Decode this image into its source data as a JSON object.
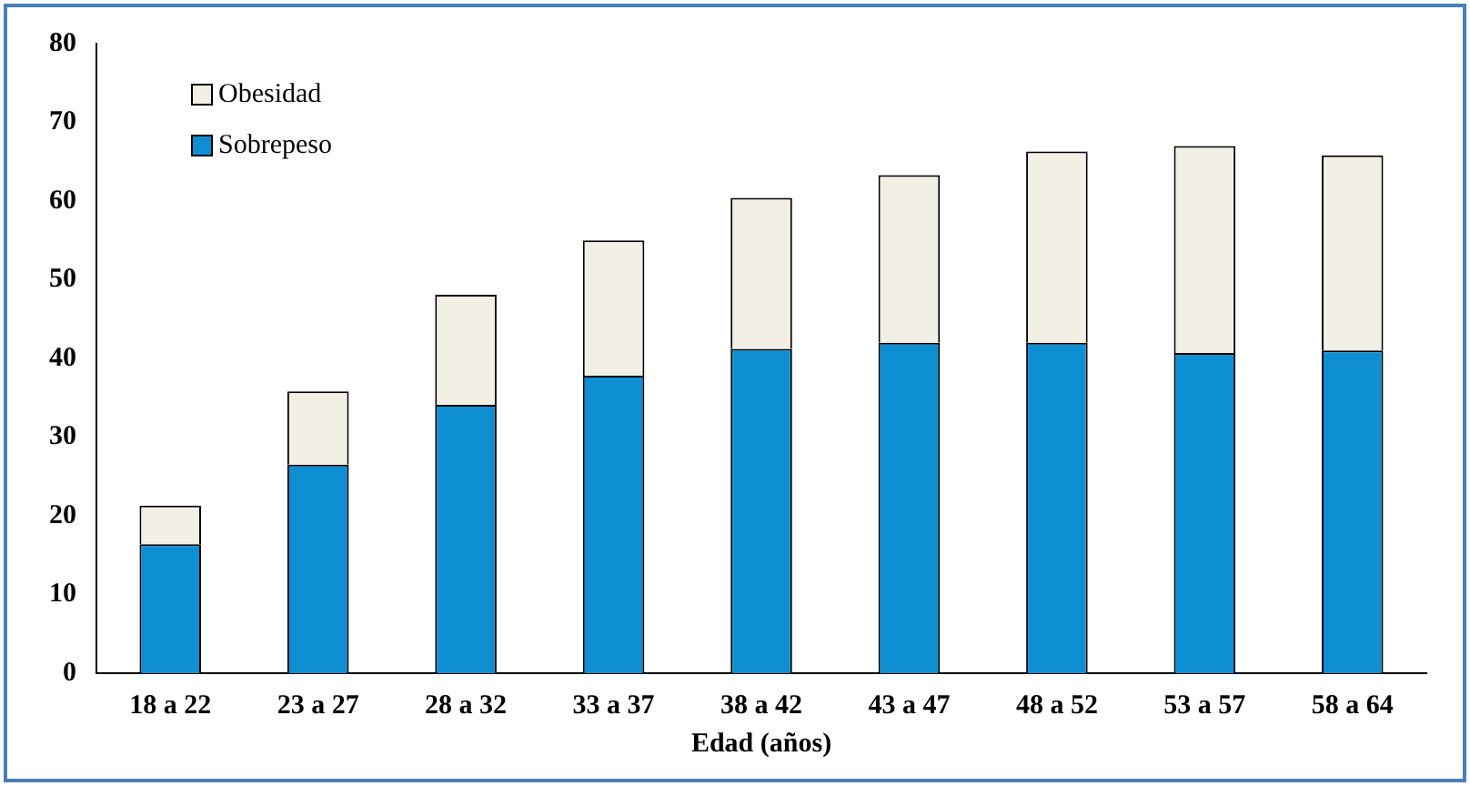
{
  "chart_data": {
    "type": "bar",
    "stacked": true,
    "xlabel": "Edad (años)",
    "categories": [
      "18 a 22",
      "23 a 27",
      "28 a 32",
      "33 a 37",
      "38 a 42",
      "43 a 47",
      "48 a 52",
      "53 a 57",
      "58 a 64"
    ],
    "series": [
      {
        "name": "Sobrepeso",
        "color": "#0e8fd4",
        "values": [
          16.4,
          26.5,
          34.1,
          37.8,
          41.2,
          42.0,
          42.0,
          40.7,
          41.0
        ]
      },
      {
        "name": "Obesidad",
        "color": "#f2efe4",
        "values": [
          4.9,
          9.3,
          14.0,
          17.2,
          19.2,
          21.3,
          24.3,
          26.3,
          24.8
        ]
      }
    ],
    "ylim": [
      0,
      80
    ],
    "yticks": [
      0,
      10,
      20,
      30,
      40,
      50,
      60,
      70,
      80
    ],
    "grid": false,
    "legend": "top left"
  }
}
